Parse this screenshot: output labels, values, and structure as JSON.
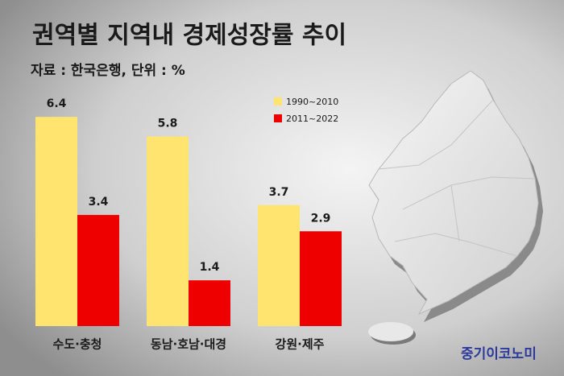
{
  "chart_data": {
    "type": "bar",
    "title": "권역별 지역내 경제성장률 추이",
    "subtitle": "자료 : 한국은행, 단위 : %",
    "categories": [
      "수도·충청",
      "동남·호남·대경",
      "강원·제주"
    ],
    "series": [
      {
        "name": "1990~2010",
        "color": "#ffe470",
        "values": [
          6.4,
          5.8,
          3.7
        ]
      },
      {
        "name": "2011~2022",
        "color": "#ee0000",
        "values": [
          3.4,
          1.4,
          2.9
        ]
      }
    ],
    "credit": "중기이코노미"
  }
}
